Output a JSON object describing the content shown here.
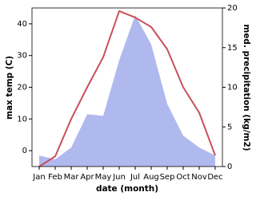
{
  "chart_data": {
    "type": "line-area",
    "xlabel": "date (month)",
    "ylabel": "max temp (C)",
    "y2label": "med. precipitation (kg/m2)",
    "categories": [
      "Jan",
      "Feb",
      "Mar",
      "Apr",
      "May",
      "Jun",
      "Jul",
      "Aug",
      "Sep",
      "Oct",
      "Nov",
      "Dec"
    ],
    "series": [
      {
        "name": "max temp",
        "color": "#c8505a",
        "kind": "line",
        "values": [
          -5,
          -1.8,
          10,
          20,
          29.5,
          44,
          42,
          39,
          32,
          20,
          12,
          -1.5
        ]
      },
      {
        "name": "med. precipitation",
        "color": "#b0b9ee",
        "kind": "area",
        "axis": "y2",
        "values": [
          1.4,
          0.9,
          2.4,
          6.6,
          6.4,
          13.4,
          19.1,
          15.4,
          7.9,
          3.9,
          2.4,
          1.4
        ]
      }
    ],
    "ylim": [
      -5,
      45
    ],
    "yticks": [
      0,
      10,
      20,
      30,
      40
    ],
    "y2lim": [
      0,
      20
    ],
    "y2ticks": [
      0,
      5,
      10,
      15,
      20
    ]
  }
}
